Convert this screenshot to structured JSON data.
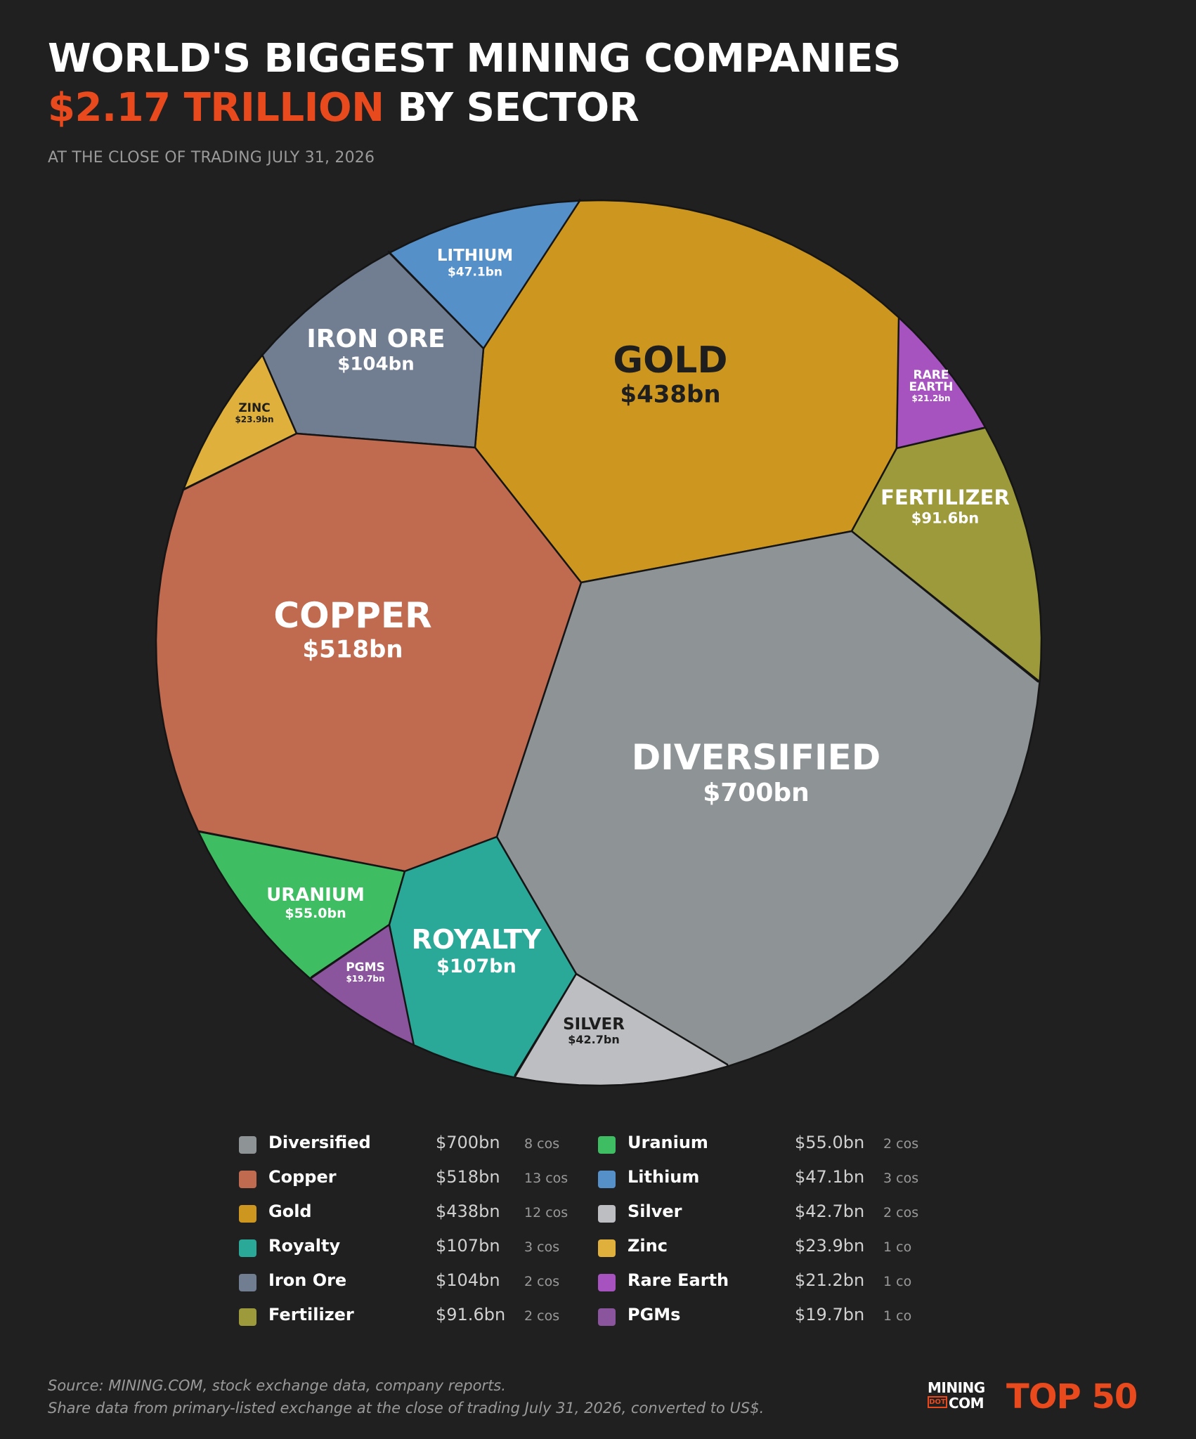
{
  "header": {
    "title_line1": "WORLD'S BIGGEST MINING COMPANIES",
    "title_accent": "$2.17 TRILLION",
    "title_rest": " BY SECTOR",
    "subtitle": "AT THE CLOSE OF TRADING JULY 31, 2026"
  },
  "colors": {
    "background": "#202020",
    "accent": "#e8491d",
    "outline": "#151515"
  },
  "chart_data": {
    "type": "voronoi-treemap",
    "title": "$2.17 TRILLION BY SECTOR",
    "total": "$2.17 TRILLION",
    "unit": "US$ billions",
    "sectors": [
      {
        "name": "Diversified",
        "label": "DIVERSIFIED",
        "value": 700,
        "display": "$700bn",
        "companies": "8 cos",
        "color": "#8e9396",
        "text_color": "#ffffff"
      },
      {
        "name": "Copper",
        "label": "COPPER",
        "value": 518,
        "display": "$518bn",
        "companies": "13 cos",
        "color": "#c06a4f",
        "text_color": "#ffffff"
      },
      {
        "name": "Gold",
        "label": "GOLD",
        "value": 438,
        "display": "$438bn",
        "companies": "12 cos",
        "color": "#cc961f",
        "text_color": "#1e1e1e"
      },
      {
        "name": "Royalty",
        "label": "ROYALTY",
        "value": 107,
        "display": "$107bn",
        "companies": "3 cos",
        "color": "#2aa898",
        "text_color": "#ffffff"
      },
      {
        "name": "Iron Ore",
        "label": "IRON ORE",
        "value": 104,
        "display": "$104bn",
        "companies": "2 cos",
        "color": "#717d91",
        "text_color": "#ffffff"
      },
      {
        "name": "Fertilizer",
        "label": "FERTILIZER",
        "value": 91.6,
        "display": "$91.6bn",
        "companies": "2 cos",
        "color": "#9c9a3a",
        "text_color": "#ffffff"
      },
      {
        "name": "Uranium",
        "label": "URANIUM",
        "value": 55.0,
        "display": "$55.0bn",
        "companies": "2 cos",
        "color": "#3fbd62",
        "text_color": "#ffffff"
      },
      {
        "name": "Lithium",
        "label": "LITHIUM",
        "value": 47.1,
        "display": "$47.1bn",
        "companies": "3 cos",
        "color": "#5590c9",
        "text_color": "#ffffff"
      },
      {
        "name": "Silver",
        "label": "SILVER",
        "value": 42.7,
        "display": "$42.7bn",
        "companies": "2 cos",
        "color": "#bcbec1",
        "text_color": "#1e1e1e"
      },
      {
        "name": "Zinc",
        "label": "ZINC",
        "value": 23.9,
        "display": "$23.9bn",
        "companies": "1 co",
        "color": "#e0b03c",
        "text_color": "#1e1e1e"
      },
      {
        "name": "Rare Earth",
        "label": "RARE EARTH",
        "value": 21.2,
        "display": "$21.2bn",
        "companies": "1 co",
        "color": "#a653c0",
        "text_color": "#ffffff"
      },
      {
        "name": "PGMs",
        "label": "PGMS",
        "value": 19.7,
        "display": "$19.7bn",
        "companies": "1 co",
        "color": "#8a559c",
        "text_color": "#ffffff"
      }
    ]
  },
  "footer": {
    "source_line1": "Source: MINING.COM, stock exchange data, company reports.",
    "source_line2": "Share data from primary-listed exchange at the close of trading July 31, 2026, converted to US$."
  },
  "brand": {
    "mining": "MINING",
    "dot": "DOT",
    "com": "COM",
    "top": "TOP 50"
  }
}
